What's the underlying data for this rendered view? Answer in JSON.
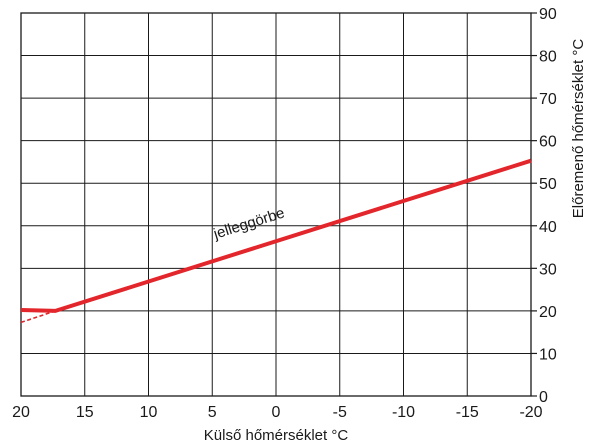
{
  "chart_data": {
    "type": "line",
    "title": "",
    "xlabel": "Külső hőmérséklet °C",
    "ylabel": "Előremenő hőmérséklet °C",
    "xlim": [
      20,
      -20
    ],
    "ylim": [
      0,
      90
    ],
    "x_ticks": [
      20,
      15,
      10,
      5,
      0,
      -5,
      -10,
      -15,
      -20
    ],
    "x_tick_labels": [
      "20",
      "15",
      "10",
      "5",
      "0",
      "-5",
      "-10",
      "-15",
      "-20"
    ],
    "y_ticks": [
      0,
      10,
      20,
      30,
      40,
      50,
      60,
      70,
      80,
      90
    ],
    "y_tick_labels": [
      "0",
      "10",
      "20",
      "30",
      "40",
      "50",
      "60",
      "70",
      "80",
      "90"
    ],
    "grid": true,
    "y_axis_side": "right",
    "series": [
      {
        "color": "#e3262b",
        "style": "solid",
        "points": [
          [
            20,
            20.2
          ],
          [
            17.3,
            20
          ],
          [
            -20,
            55.3
          ]
        ]
      },
      {
        "color": "#e3262b",
        "style": "dashed",
        "points": [
          [
            20,
            17.3
          ],
          [
            17.3,
            20
          ]
        ]
      }
    ],
    "annotations": [
      {
        "text": "jelleggörbe",
        "x": 2,
        "y": 39.5
      }
    ]
  }
}
